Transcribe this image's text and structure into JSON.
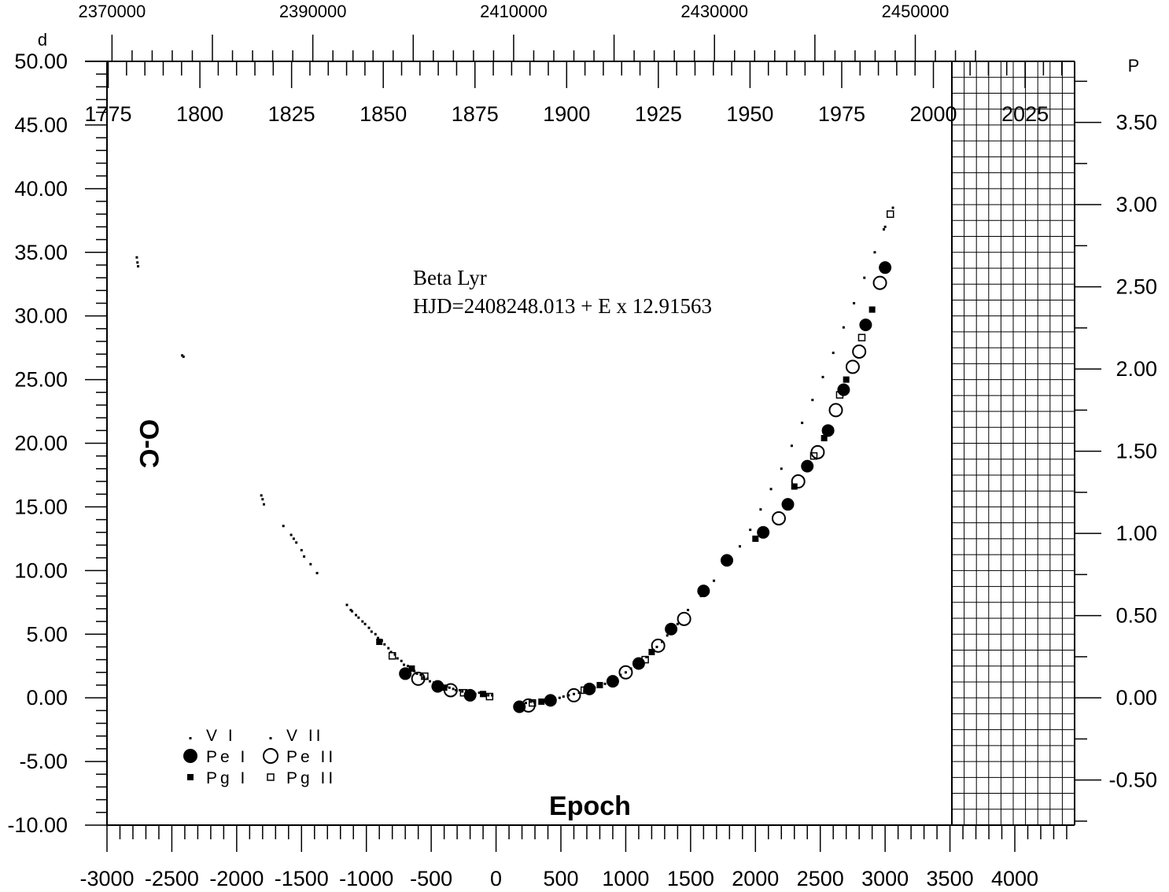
{
  "chart_data": {
    "type": "scatter",
    "title": "",
    "annotation": {
      "name": "Beta Lyr",
      "ephemeris": "HJD=2408248.013 + E x 12.91563"
    },
    "xlabel": "Epoch",
    "ylabel": "O-C",
    "y_unit_left": "d",
    "y_unit_right": "P",
    "xlim": [
      -3000,
      4500
    ],
    "ylim": [
      -10,
      50
    ],
    "y_ticks_left": [
      "50.00",
      "45.00",
      "40.00",
      "35.00",
      "30.00",
      "25.00",
      "20.00",
      "15.00",
      "10.00",
      "5.00",
      "0.00",
      "-5.00",
      "-10.00"
    ],
    "y_ticks_right": [
      "3.50",
      "3.00",
      "2.50",
      "2.00",
      "1.50",
      "1.00",
      "0.50",
      "0.00",
      "-0.50"
    ],
    "x_ticks_bottom": [
      "-3000",
      "-2500",
      "-2000",
      "-1500",
      "-1000",
      "-500",
      "0",
      "500",
      "1000",
      "1500",
      "2000",
      "2500",
      "3000",
      "3500",
      "4000"
    ],
    "x_ticks_top_jd": [
      "2370000",
      "2390000",
      "2410000",
      "2430000",
      "2450000"
    ],
    "x_ticks_top_year": [
      "1775",
      "1800",
      "1825",
      "1850",
      "1875",
      "1900",
      "1925",
      "1950",
      "1975",
      "2000",
      "2025"
    ],
    "grid": "right-side grid region only",
    "legend_position": "bottom-left",
    "legend": [
      {
        "marker": "tiny-dot",
        "label": "V  I"
      },
      {
        "marker": "tiny-dot",
        "label": "V II"
      },
      {
        "marker": "filled-circle",
        "label": "Pe I"
      },
      {
        "marker": "open-circle",
        "label": "Pe II"
      },
      {
        "marker": "filled-square",
        "label": "Pg I"
      },
      {
        "marker": "open-square",
        "label": "Pg II"
      }
    ],
    "series": [
      {
        "name": "V  I",
        "marker": "tiny-dot",
        "points": [
          [
            -2770,
            34.6
          ],
          [
            -2765,
            34.2
          ],
          [
            -2760,
            33.9
          ],
          [
            -2420,
            26.9
          ],
          [
            -2410,
            26.8
          ],
          [
            -1810,
            15.9
          ],
          [
            -1800,
            15.6
          ],
          [
            -1790,
            15.2
          ],
          [
            -1640,
            13.5
          ],
          [
            -1580,
            12.8
          ],
          [
            -1560,
            12.5
          ],
          [
            -1540,
            12.2
          ],
          [
            -1500,
            11.6
          ],
          [
            -1480,
            11.1
          ],
          [
            -1430,
            10.5
          ],
          [
            -1380,
            9.8
          ],
          [
            -1150,
            7.3
          ],
          [
            -1120,
            6.9
          ],
          [
            -1080,
            6.5
          ],
          [
            -1030,
            6.0
          ],
          [
            -980,
            5.5
          ],
          [
            -930,
            5.0
          ],
          [
            -880,
            4.5
          ],
          [
            -830,
            3.9
          ],
          [
            -780,
            3.4
          ],
          [
            -730,
            2.9
          ],
          [
            -680,
            2.5
          ],
          [
            -630,
            2.1
          ],
          [
            -580,
            1.8
          ],
          [
            -530,
            1.5
          ],
          [
            -480,
            1.2
          ],
          [
            -430,
            1.0
          ],
          [
            -380,
            0.9
          ],
          [
            -330,
            0.7
          ],
          [
            -280,
            0.6
          ],
          [
            -230,
            0.5
          ],
          [
            -180,
            0.4
          ],
          [
            -130,
            0.4
          ],
          [
            -80,
            0.3
          ],
          [
            -30,
            0.2
          ],
          [
            170,
            -0.6
          ],
          [
            230,
            -0.4
          ],
          [
            300,
            -0.3
          ],
          [
            370,
            -0.2
          ],
          [
            450,
            -0.1
          ],
          [
            520,
            0.1
          ],
          [
            600,
            0.3
          ],
          [
            680,
            0.5
          ],
          [
            760,
            0.8
          ],
          [
            840,
            1.1
          ],
          [
            920,
            1.5
          ],
          [
            1000,
            2.0
          ],
          [
            1080,
            2.6
          ],
          [
            1160,
            3.2
          ],
          [
            1240,
            4.0
          ],
          [
            1320,
            4.9
          ],
          [
            1400,
            5.8
          ],
          [
            1480,
            6.9
          ],
          [
            1580,
            8.0
          ],
          [
            1680,
            9.2
          ],
          [
            1780,
            10.5
          ],
          [
            1880,
            11.9
          ],
          [
            1960,
            13.2
          ],
          [
            2040,
            14.8
          ],
          [
            2120,
            16.4
          ],
          [
            2200,
            18.0
          ],
          [
            2280,
            19.8
          ],
          [
            2360,
            21.6
          ],
          [
            2440,
            23.4
          ],
          [
            2520,
            25.2
          ],
          [
            2600,
            27.1
          ],
          [
            2680,
            29.1
          ],
          [
            2760,
            31.0
          ],
          [
            2840,
            33.0
          ],
          [
            2920,
            35.0
          ],
          [
            3000,
            37.0
          ],
          [
            3060,
            38.5
          ]
        ]
      },
      {
        "name": "V II",
        "marker": "tiny-dot",
        "points": [
          [
            -1110,
            6.8
          ],
          [
            -1060,
            6.3
          ],
          [
            -1010,
            5.8
          ],
          [
            -960,
            5.2
          ],
          [
            -910,
            4.7
          ],
          [
            -860,
            4.2
          ],
          [
            -810,
            3.6
          ],
          [
            -760,
            3.1
          ],
          [
            -710,
            2.6
          ],
          [
            -660,
            2.2
          ],
          [
            -610,
            1.9
          ],
          [
            -560,
            1.6
          ],
          [
            -510,
            1.3
          ],
          [
            -460,
            1.1
          ],
          [
            -410,
            0.9
          ],
          [
            -360,
            0.8
          ],
          [
            -310,
            0.6
          ],
          [
            -260,
            0.5
          ],
          [
            -210,
            0.4
          ],
          [
            -160,
            0.3
          ],
          [
            -110,
            0.3
          ],
          [
            -60,
            0.2
          ],
          [
            200,
            -0.5
          ],
          [
            270,
            -0.3
          ],
          [
            340,
            -0.2
          ],
          [
            410,
            -0.1
          ],
          [
            490,
            0.0
          ],
          [
            560,
            0.2
          ],
          [
            640,
            0.4
          ],
          [
            720,
            0.7
          ],
          [
            800,
            1.0
          ],
          [
            880,
            1.3
          ],
          [
            960,
            1.8
          ],
          [
            1040,
            2.3
          ],
          [
            1120,
            2.9
          ],
          [
            1200,
            3.6
          ],
          [
            1280,
            4.4
          ],
          [
            1360,
            5.3
          ],
          [
            2990,
            36.8
          ]
        ]
      },
      {
        "name": "Pe I",
        "marker": "filled-circle",
        "points": [
          [
            -700,
            1.9
          ],
          [
            -450,
            0.9
          ],
          [
            -200,
            0.2
          ],
          [
            180,
            -0.7
          ],
          [
            420,
            -0.2
          ],
          [
            720,
            0.7
          ],
          [
            900,
            1.3
          ],
          [
            1100,
            2.7
          ],
          [
            1350,
            5.4
          ],
          [
            1600,
            8.4
          ],
          [
            1780,
            10.8
          ],
          [
            2060,
            13.0
          ],
          [
            2250,
            15.2
          ],
          [
            2400,
            18.2
          ],
          [
            2560,
            21.0
          ],
          [
            2680,
            24.2
          ],
          [
            2850,
            29.3
          ],
          [
            3000,
            33.8
          ]
        ]
      },
      {
        "name": "Pe II",
        "marker": "open-circle",
        "points": [
          [
            -600,
            1.5
          ],
          [
            -350,
            0.6
          ],
          [
            250,
            -0.6
          ],
          [
            600,
            0.2
          ],
          [
            1000,
            2.0
          ],
          [
            1250,
            4.1
          ],
          [
            1450,
            6.2
          ],
          [
            2180,
            14.1
          ],
          [
            2330,
            17.0
          ],
          [
            2480,
            19.3
          ],
          [
            2620,
            22.6
          ],
          [
            2750,
            26.0
          ],
          [
            2800,
            27.2
          ],
          [
            2960,
            32.6
          ]
        ]
      },
      {
        "name": "Pg I",
        "marker": "filled-square",
        "points": [
          [
            -900,
            4.4
          ],
          [
            -650,
            2.3
          ],
          [
            -400,
            0.8
          ],
          [
            -100,
            0.3
          ],
          [
            350,
            -0.3
          ],
          [
            800,
            1.0
          ],
          [
            1200,
            3.6
          ],
          [
            2000,
            12.5
          ],
          [
            2300,
            16.6
          ],
          [
            2530,
            20.4
          ],
          [
            2700,
            25.0
          ],
          [
            2900,
            30.5
          ]
        ]
      },
      {
        "name": "Pg II",
        "marker": "open-square",
        "points": [
          [
            -800,
            3.3
          ],
          [
            -550,
            1.7
          ],
          [
            -250,
            0.4
          ],
          [
            -50,
            0.1
          ],
          [
            280,
            -0.4
          ],
          [
            680,
            0.6
          ],
          [
            1150,
            3.0
          ],
          [
            2450,
            19.0
          ],
          [
            2650,
            23.8
          ],
          [
            2820,
            28.3
          ],
          [
            3040,
            38.0
          ]
        ]
      }
    ]
  }
}
